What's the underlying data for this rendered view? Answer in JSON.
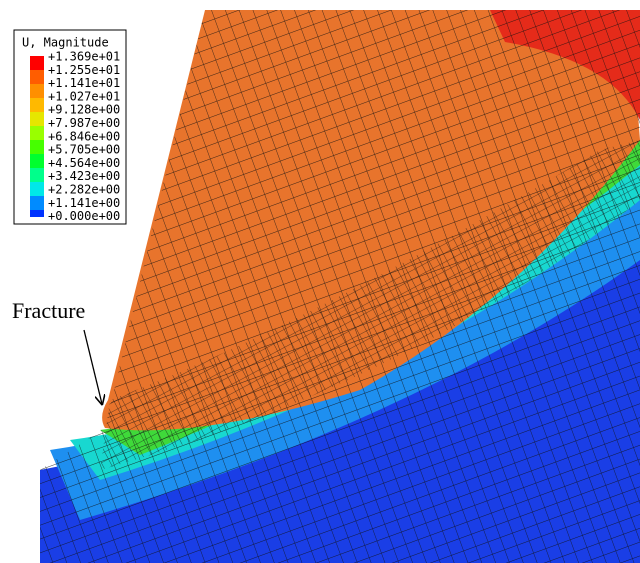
{
  "legend": {
    "title": "U, Magnitude",
    "labels": [
      "+1.369e+01",
      "+1.255e+01",
      "+1.141e+01",
      "+1.027e+01",
      "+9.128e+00",
      "+7.987e+00",
      "+6.846e+00",
      "+5.705e+00",
      "+4.564e+00",
      "+3.423e+00",
      "+2.282e+00",
      "+1.141e+00",
      "+0.000e+00"
    ]
  },
  "annotation": "Fracture"
}
